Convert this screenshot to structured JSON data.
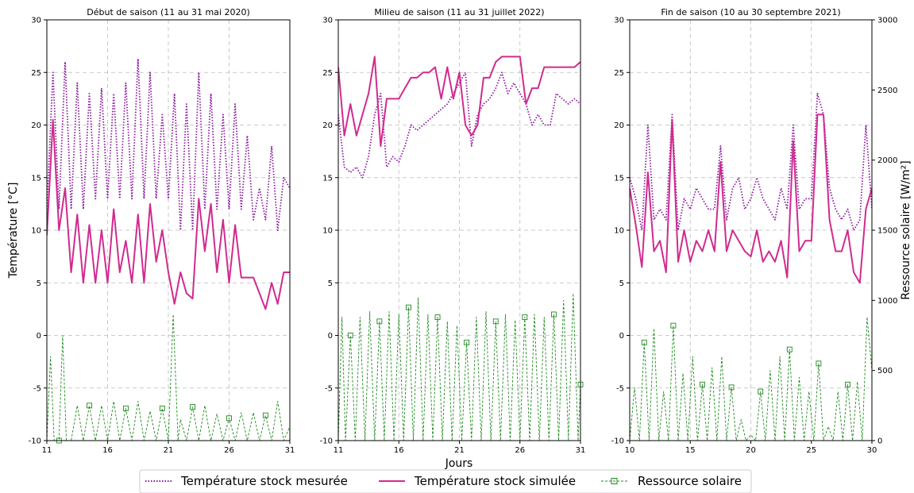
{
  "figure": {
    "ylabel_left": "Température [°C]",
    "ylabel_right": "Ressource solaire [W/m²]",
    "xlabel": "Jours"
  },
  "legend": {
    "placement": "bottom-center",
    "items": [
      {
        "label": "Température stock mesurée",
        "style": "dotted",
        "color": "#8b1a9e"
      },
      {
        "label": "Température stock simulée",
        "style": "solid",
        "color": "#d02b8f"
      },
      {
        "label": "Ressource solaire",
        "style": "dashed-square",
        "color": "#1f8a1f"
      }
    ]
  },
  "colors": {
    "measured": "#8b1a9e",
    "simulated": "#d02b8f",
    "solar": "#1f8a1f",
    "grid": "#bbbbbb"
  },
  "chart_data": [
    {
      "type": "line",
      "title": "Début de saison (11 au 31 mai 2020)",
      "xlim": [
        11,
        31
      ],
      "xticks": [
        11,
        16,
        21,
        26,
        31
      ],
      "ylim": [
        -10,
        30
      ],
      "yticks": [
        -10,
        -5,
        0,
        5,
        10,
        15,
        20,
        25,
        30
      ],
      "y2lim": [
        0,
        3000
      ],
      "grid": true,
      "series": [
        {
          "name": "Température stock mesurée",
          "axis": "left",
          "x": [
            11,
            11.5,
            12,
            12.5,
            13,
            13.5,
            14,
            14.5,
            15,
            15.5,
            16,
            16.5,
            17,
            17.5,
            18,
            18.5,
            19,
            19.5,
            20,
            20.5,
            21,
            21.5,
            22,
            22.5,
            23,
            23.5,
            24,
            24.5,
            25,
            25.5,
            26,
            26.5,
            27,
            27.5,
            28,
            28.5,
            29,
            29.5,
            30,
            30.5,
            31
          ],
          "y": [
            12,
            25,
            12,
            26,
            12,
            24,
            12,
            23,
            13,
            23.5,
            13,
            23,
            13,
            24,
            13,
            26.3,
            13,
            25,
            13,
            21,
            13,
            23,
            10,
            22,
            10,
            25,
            12,
            23,
            12,
            21,
            12,
            22,
            12,
            19,
            11,
            14,
            11,
            18,
            10,
            15,
            14
          ]
        },
        {
          "name": "Température stock simulée",
          "axis": "left",
          "x": [
            11,
            11.5,
            12,
            12.5,
            13,
            13.5,
            14,
            14.5,
            15,
            15.5,
            16,
            16.5,
            17,
            17.5,
            18,
            18.5,
            19,
            19.5,
            20,
            20.5,
            21,
            21.5,
            22,
            22.5,
            23,
            23.5,
            24,
            24.5,
            25,
            25.5,
            26,
            26.5,
            27,
            27.5,
            28,
            28.5,
            29,
            29.5,
            30,
            30.5,
            31
          ],
          "y": [
            9.5,
            20.5,
            10,
            14,
            6,
            11.5,
            5,
            10.5,
            5,
            10,
            5,
            12,
            6,
            9,
            5,
            11.5,
            5,
            12.5,
            7,
            10,
            6,
            3,
            6,
            4,
            3.5,
            13,
            8,
            12.5,
            6,
            11,
            5,
            10.5,
            5.5,
            5.5,
            5.5,
            4,
            2.5,
            5,
            3,
            6,
            6
          ]
        },
        {
          "name": "Ressource solaire",
          "axis": "right",
          "x": [
            11,
            11.3,
            11.6,
            12,
            12.3,
            12.6,
            13,
            13.5,
            14,
            14.5,
            15,
            15.5,
            16,
            16.5,
            17,
            17.5,
            18,
            18.5,
            19,
            19.5,
            20,
            20.5,
            21,
            21.4,
            21.8,
            22,
            22.5,
            23,
            23.5,
            24,
            24.5,
            25,
            25.5,
            26,
            26.5,
            27,
            27.5,
            28,
            28.5,
            29,
            29.5,
            30,
            30.5,
            31
          ],
          "y": [
            0,
            600,
            0,
            0,
            750,
            0,
            0,
            250,
            0,
            250,
            0,
            250,
            0,
            280,
            0,
            230,
            0,
            280,
            0,
            210,
            0,
            230,
            0,
            900,
            0,
            150,
            0,
            240,
            0,
            250,
            0,
            190,
            0,
            160,
            0,
            200,
            0,
            200,
            0,
            180,
            0,
            280,
            0,
            100
          ]
        }
      ]
    },
    {
      "type": "line",
      "title": "Milieu de saison (11 au 31 juillet 2022)",
      "xlim": [
        11,
        31
      ],
      "xticks": [
        11,
        16,
        21,
        26,
        31
      ],
      "ylim": [
        -10,
        30
      ],
      "yticks": [
        -10,
        -5,
        0,
        5,
        10,
        15,
        20,
        25,
        30
      ],
      "y2lim": [
        0,
        3000
      ],
      "grid": true,
      "series": [
        {
          "name": "Température stock mesurée",
          "axis": "left",
          "x": [
            11,
            11.5,
            12,
            12.5,
            13,
            13.5,
            14,
            14.5,
            15,
            15.5,
            16,
            16.5,
            17,
            17.5,
            18,
            18.5,
            19,
            19.5,
            20,
            20.5,
            21,
            21.5,
            22,
            22.5,
            23,
            23.5,
            24,
            24.5,
            25,
            25.5,
            26,
            26.5,
            27,
            27.5,
            28,
            28.5,
            29,
            29.5,
            30,
            30.5,
            31
          ],
          "y": [
            21,
            16,
            15.5,
            16,
            15,
            17,
            21,
            23,
            16,
            17,
            16.5,
            18,
            20,
            19.5,
            20,
            20.5,
            21,
            21.5,
            22,
            23,
            24,
            25,
            18,
            21,
            22,
            22.5,
            23.5,
            25,
            23,
            24,
            23,
            22,
            20,
            21,
            20,
            20,
            23,
            22.5,
            22,
            22.5,
            22
          ]
        },
        {
          "name": "Température stock simulée",
          "axis": "left",
          "x": [
            11,
            11.5,
            12,
            12.5,
            13,
            13.5,
            14,
            14.5,
            15,
            15.5,
            16,
            16.5,
            17,
            17.5,
            18,
            18.5,
            19,
            19.5,
            20,
            20.5,
            21,
            21.5,
            22,
            22.5,
            23,
            23.5,
            24,
            24.5,
            25,
            25.5,
            26,
            26.5,
            27,
            27.5,
            28,
            28.5,
            29,
            29.5,
            30,
            30.5,
            31
          ],
          "y": [
            25.5,
            19,
            22,
            19,
            21,
            23,
            26.5,
            18,
            22.5,
            22.5,
            22.5,
            23.5,
            24.5,
            24.5,
            25,
            25,
            25.5,
            22.5,
            25.5,
            22.5,
            25,
            20,
            19,
            20,
            24.5,
            24.5,
            26,
            26.5,
            26.5,
            26.5,
            26.5,
            22,
            23.5,
            23.5,
            25.5,
            25.5,
            25.5,
            25.5,
            25.5,
            25.5,
            26
          ]
        },
        {
          "name": "Ressource solaire",
          "axis": "right",
          "x": [
            11,
            11.3,
            11.6,
            12,
            12.4,
            12.8,
            13.2,
            13.6,
            14,
            14.4,
            14.8,
            15.2,
            15.6,
            16,
            16.4,
            16.8,
            17.2,
            17.6,
            18,
            18.4,
            18.8,
            19.2,
            19.6,
            20,
            20.4,
            20.8,
            21.2,
            21.6,
            22,
            22.4,
            22.8,
            23.2,
            23.6,
            24,
            24.4,
            24.8,
            25.2,
            25.6,
            26,
            26.4,
            26.8,
            27.2,
            27.6,
            28,
            28.4,
            28.8,
            29.2,
            29.6,
            30,
            30.4,
            30.8,
            31
          ],
          "y": [
            0,
            880,
            0,
            750,
            0,
            880,
            0,
            920,
            0,
            850,
            0,
            920,
            0,
            900,
            0,
            950,
            0,
            1020,
            0,
            900,
            0,
            880,
            0,
            850,
            0,
            820,
            0,
            700,
            0,
            880,
            0,
            920,
            0,
            850,
            0,
            900,
            0,
            860,
            0,
            880,
            0,
            900,
            0,
            880,
            0,
            900,
            0,
            1000,
            0,
            1050,
            0,
            400
          ]
        }
      ]
    },
    {
      "type": "line",
      "title": "Fin de saison (10 au 30 septembre 2021)",
      "xlim": [
        10,
        30
      ],
      "xticks": [
        10,
        15,
        20,
        25,
        30
      ],
      "ylim": [
        -10,
        30
      ],
      "yticks": [
        -10,
        -5,
        0,
        5,
        10,
        15,
        20,
        25,
        30
      ],
      "y2lim": [
        0,
        3000
      ],
      "y2ticks": [
        0,
        500,
        1000,
        1500,
        2000,
        2500,
        3000
      ],
      "grid": true,
      "series": [
        {
          "name": "Température stock mesurée",
          "axis": "left",
          "x": [
            10,
            10.5,
            11,
            11.5,
            12,
            12.5,
            13,
            13.5,
            14,
            14.5,
            15,
            15.5,
            16,
            16.5,
            17,
            17.5,
            18,
            18.5,
            19,
            19.5,
            20,
            20.5,
            21,
            21.5,
            22,
            22.5,
            23,
            23.5,
            24,
            24.5,
            25,
            25.5,
            26,
            26.5,
            27,
            27.5,
            28,
            28.5,
            29,
            29.5,
            30
          ],
          "y": [
            15,
            13,
            10,
            20,
            11,
            12,
            11,
            21,
            10,
            13,
            12,
            14,
            13,
            12,
            12,
            18,
            11,
            14,
            15,
            12,
            13,
            15,
            13,
            12,
            11,
            14,
            12,
            20,
            12,
            13,
            13,
            23,
            21,
            14,
            12,
            11,
            12,
            10,
            11,
            20,
            12
          ]
        },
        {
          "name": "Température stock simulée",
          "axis": "left",
          "x": [
            10,
            10.5,
            11,
            11.5,
            12,
            12.5,
            13,
            13.5,
            14,
            14.5,
            15,
            15.5,
            16,
            16.5,
            17,
            17.5,
            18,
            18.5,
            19,
            19.5,
            20,
            20.5,
            21,
            21.5,
            22,
            22.5,
            23,
            23.5,
            24,
            24.5,
            25,
            25.5,
            26,
            26.5,
            27,
            27.5,
            28,
            28.5,
            29,
            29.5,
            30
          ],
          "y": [
            14,
            10.5,
            6.5,
            15.5,
            8,
            9,
            6,
            20.5,
            7,
            10,
            7,
            9,
            8,
            10,
            8,
            16.5,
            8,
            10,
            9,
            8,
            7.5,
            10,
            7,
            8,
            7,
            9,
            5.5,
            18.5,
            8,
            9,
            9,
            21,
            21,
            11,
            8,
            8,
            10,
            6,
            5,
            12,
            14
          ]
        },
        {
          "name": "Ressource solaire",
          "axis": "right",
          "x": [
            10,
            10.4,
            10.8,
            11.2,
            11.6,
            12,
            12.4,
            12.8,
            13.2,
            13.6,
            14,
            14.4,
            14.8,
            15.2,
            15.6,
            16,
            16.4,
            16.8,
            17.2,
            17.6,
            18,
            18.4,
            18.8,
            19.2,
            19.6,
            20,
            20.4,
            20.8,
            21.2,
            21.6,
            22,
            22.4,
            22.8,
            23.2,
            23.6,
            24,
            24.4,
            24.8,
            25.2,
            25.6,
            26,
            26.4,
            26.8,
            27.2,
            27.6,
            28,
            28.4,
            28.8,
            29.2,
            29.6,
            30
          ],
          "y": [
            0,
            380,
            0,
            700,
            0,
            800,
            0,
            350,
            0,
            820,
            0,
            480,
            0,
            600,
            0,
            400,
            0,
            520,
            0,
            600,
            0,
            380,
            0,
            150,
            0,
            40,
            0,
            350,
            0,
            500,
            0,
            600,
            0,
            650,
            0,
            450,
            0,
            350,
            0,
            550,
            0,
            100,
            0,
            350,
            0,
            400,
            0,
            420,
            0,
            880,
            500
          ]
        }
      ]
    }
  ]
}
